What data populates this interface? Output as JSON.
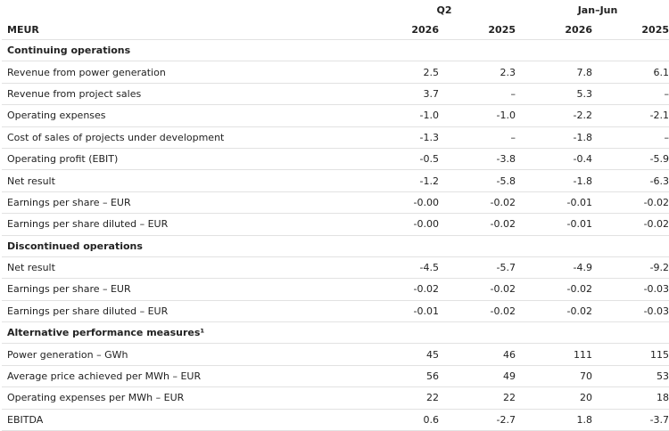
{
  "header": {
    "unit_label": "MEUR",
    "periods": [
      {
        "label": "Q2",
        "years": [
          "2026",
          "2025"
        ]
      },
      {
        "label": "Jan–Jun",
        "years": [
          "2026",
          "2025"
        ]
      }
    ]
  },
  "sections": [
    {
      "title": "Continuing operations",
      "rows": [
        {
          "label": "Revenue from power generation",
          "values": [
            "2.5",
            "2.3",
            "7.8",
            "6.1"
          ]
        },
        {
          "label": "Revenue from project sales",
          "values": [
            "3.7",
            "–",
            "5.3",
            "–"
          ]
        },
        {
          "label": "Operating expenses",
          "values": [
            "-1.0",
            "-1.0",
            "-2.2",
            "-2.1"
          ]
        },
        {
          "label": "Cost of sales of projects under development",
          "values": [
            "-1.3",
            "–",
            "-1.8",
            "–"
          ]
        },
        {
          "label": "Operating profit (EBIT)",
          "values": [
            "-0.5",
            "-3.8",
            "-0.4",
            "-5.9"
          ]
        },
        {
          "label": "Net result",
          "values": [
            "-1.2",
            "-5.8",
            "-1.8",
            "-6.3"
          ]
        },
        {
          "label": "Earnings per share – EUR",
          "values": [
            "-0.00",
            "-0.02",
            "-0.01",
            "-0.02"
          ]
        },
        {
          "label": "Earnings per share diluted – EUR",
          "values": [
            "-0.00",
            "-0.02",
            "-0.01",
            "-0.02"
          ]
        }
      ]
    },
    {
      "title": "Discontinued operations",
      "rows": [
        {
          "label": "Net result",
          "values": [
            "-4.5",
            "-5.7",
            "-4.9",
            "-9.2"
          ]
        },
        {
          "label": "Earnings per share – EUR",
          "values": [
            "-0.02",
            "-0.02",
            "-0.02",
            "-0.03"
          ]
        },
        {
          "label": "Earnings per share diluted – EUR",
          "values": [
            "-0.01",
            "-0.02",
            "-0.02",
            "-0.03"
          ]
        }
      ]
    },
    {
      "title": "Alternative performance measures¹",
      "rows": [
        {
          "label": "Power generation – GWh",
          "values": [
            "45",
            "46",
            "111",
            "115"
          ]
        },
        {
          "label": "Average price achieved per MWh – EUR",
          "values": [
            "56",
            "49",
            "70",
            "53"
          ]
        },
        {
          "label": "Operating expenses per MWh – EUR",
          "values": [
            "22",
            "22",
            "20",
            "18"
          ]
        },
        {
          "label": "EBITDA",
          "values": [
            "0.6",
            "-2.7",
            "1.8",
            "-3.7"
          ]
        }
      ]
    }
  ]
}
